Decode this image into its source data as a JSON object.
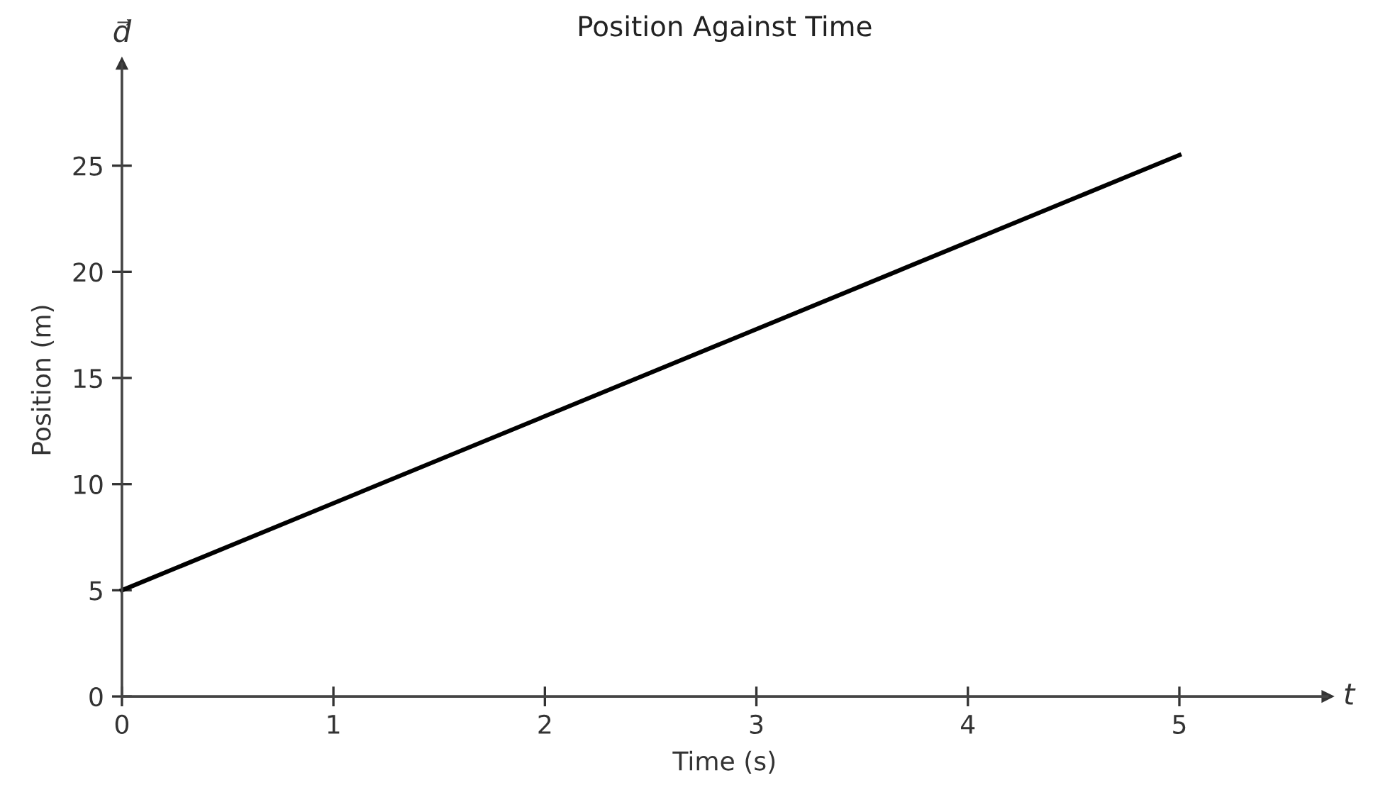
{
  "chart_data": {
    "type": "line",
    "title": "Position Against Time",
    "xlabel": "Time (s)",
    "ylabel": "Position (m)",
    "x": [
      0,
      5
    ],
    "series": [
      {
        "color": "#000000",
        "values": [
          5,
          25.5
        ]
      }
    ],
    "xlim": [
      0,
      5.7
    ],
    "ylim": [
      0,
      29.8
    ],
    "xticks": [
      0,
      1,
      2,
      3,
      4,
      5
    ],
    "yticks": [
      0,
      5,
      10,
      15,
      20,
      25
    ],
    "grid": false,
    "legend": false,
    "marker": "none",
    "line_style": "solid",
    "annotations": [
      "d⃗",
      "t"
    ]
  }
}
